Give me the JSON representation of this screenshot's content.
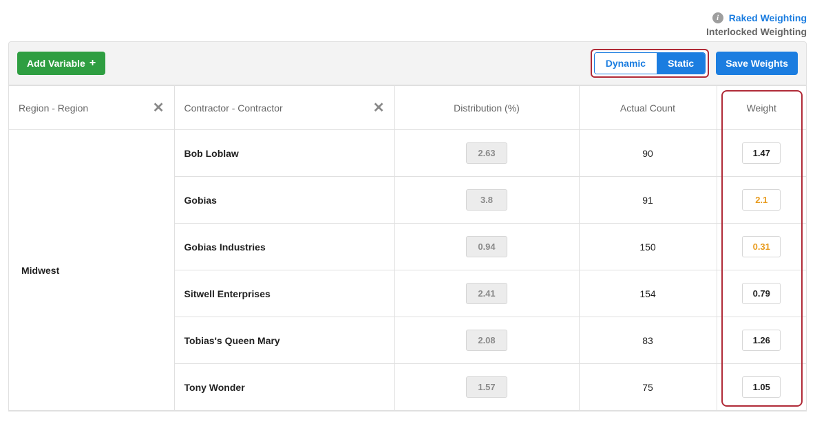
{
  "links": {
    "raked": "Raked Weighting",
    "interlocked": "Interlocked Weighting"
  },
  "toolbar": {
    "add_variable": "Add Variable",
    "dynamic": "Dynamic",
    "static": "Static",
    "save_weights": "Save Weights"
  },
  "headers": {
    "region": "Region - Region",
    "contractor": "Contractor - Contractor",
    "distribution": "Distribution (%)",
    "actual_count": "Actual Count",
    "weight": "Weight"
  },
  "region": "Midwest",
  "rows": [
    {
      "contractor": "Bob Loblaw",
      "distribution": "2.63",
      "count": "90",
      "weight": "1.47",
      "warn": false
    },
    {
      "contractor": "Gobias",
      "distribution": "3.8",
      "count": "91",
      "weight": "2.1",
      "warn": true
    },
    {
      "contractor": "Gobias Industries",
      "distribution": "0.94",
      "count": "150",
      "weight": "0.31",
      "warn": true
    },
    {
      "contractor": "Sitwell Enterprises",
      "distribution": "2.41",
      "count": "154",
      "weight": "0.79",
      "warn": false
    },
    {
      "contractor": "Tobias's Queen Mary",
      "distribution": "2.08",
      "count": "83",
      "weight": "1.26",
      "warn": false
    },
    {
      "contractor": "Tony Wonder",
      "distribution": "1.57",
      "count": "75",
      "weight": "1.05",
      "warn": false
    }
  ],
  "colors": {
    "accent_blue": "#1b7de0",
    "accent_green": "#2e9e41",
    "highlight_border": "#b02a37",
    "warn_text": "#e89b1e",
    "muted_text": "#666",
    "border": "#e0e0e0",
    "dist_bg": "#ececec"
  },
  "icons": {
    "info": "i",
    "plus": "+",
    "close": "✕"
  }
}
